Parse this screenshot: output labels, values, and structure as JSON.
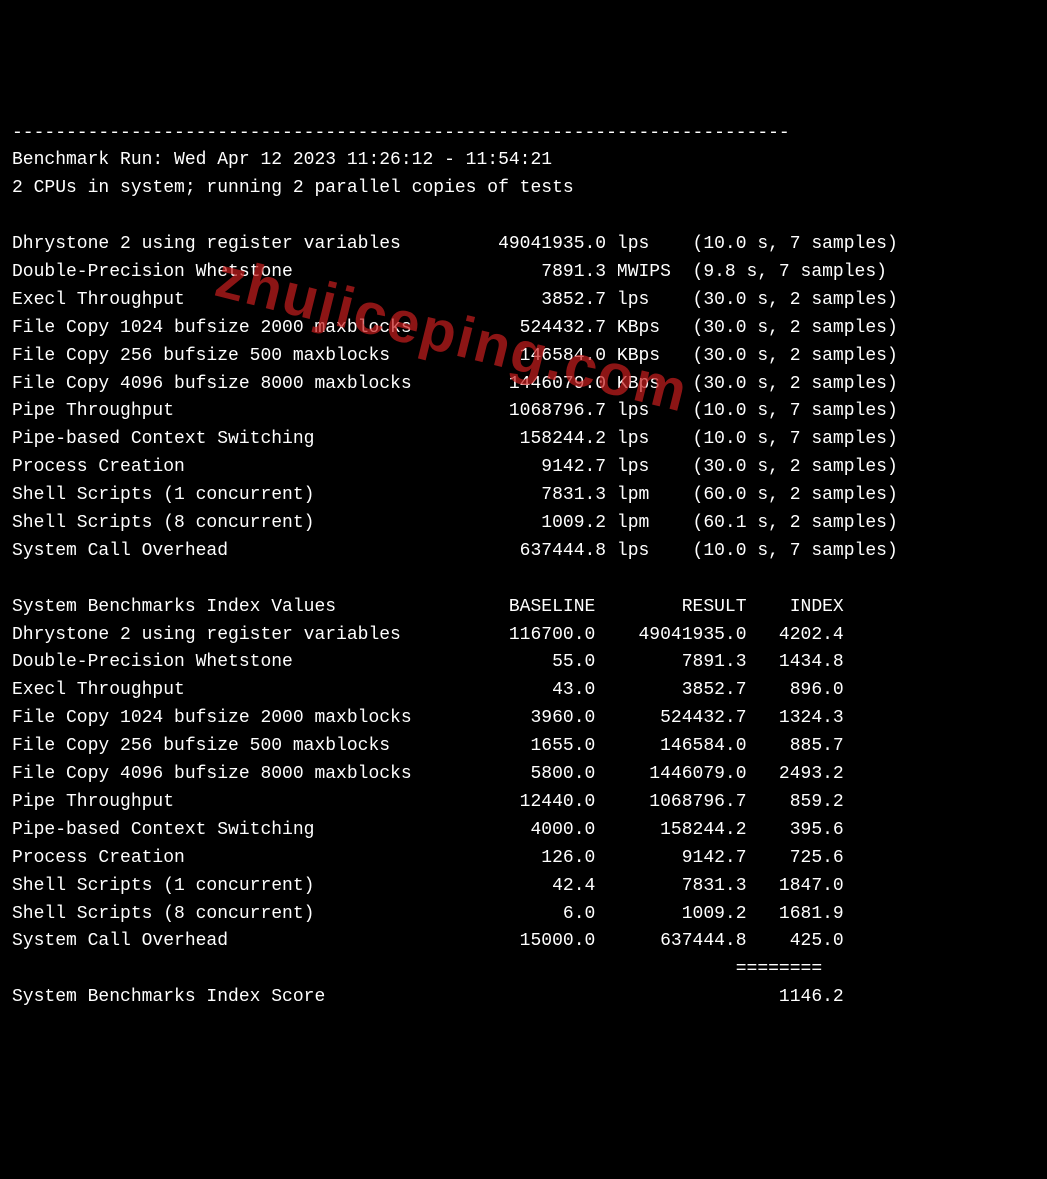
{
  "separator_top": "------------------------------------------------------------------------",
  "header": {
    "run_line": "Benchmark Run: Wed Apr 12 2023 11:26:12 - 11:54:21",
    "cpu_line": "2 CPUs in system; running 2 parallel copies of tests"
  },
  "results_section": {
    "rows": [
      {
        "name": "Dhrystone 2 using register variables",
        "value": "49041935.0",
        "unit": "lps",
        "timing": "(10.0 s, 7 samples)"
      },
      {
        "name": "Double-Precision Whetstone",
        "value": "7891.3",
        "unit": "MWIPS",
        "timing": "(9.8 s, 7 samples)"
      },
      {
        "name": "Execl Throughput",
        "value": "3852.7",
        "unit": "lps",
        "timing": "(30.0 s, 2 samples)"
      },
      {
        "name": "File Copy 1024 bufsize 2000 maxblocks",
        "value": "524432.7",
        "unit": "KBps",
        "timing": "(30.0 s, 2 samples)"
      },
      {
        "name": "File Copy 256 bufsize 500 maxblocks",
        "value": "146584.0",
        "unit": "KBps",
        "timing": "(30.0 s, 2 samples)"
      },
      {
        "name": "File Copy 4096 bufsize 8000 maxblocks",
        "value": "1446079.0",
        "unit": "KBps",
        "timing": "(30.0 s, 2 samples)"
      },
      {
        "name": "Pipe Throughput",
        "value": "1068796.7",
        "unit": "lps",
        "timing": "(10.0 s, 7 samples)"
      },
      {
        "name": "Pipe-based Context Switching",
        "value": "158244.2",
        "unit": "lps",
        "timing": "(10.0 s, 7 samples)"
      },
      {
        "name": "Process Creation",
        "value": "9142.7",
        "unit": "lps",
        "timing": "(30.0 s, 2 samples)"
      },
      {
        "name": "Shell Scripts (1 concurrent)",
        "value": "7831.3",
        "unit": "lpm",
        "timing": "(60.0 s, 2 samples)"
      },
      {
        "name": "Shell Scripts (8 concurrent)",
        "value": "1009.2",
        "unit": "lpm",
        "timing": "(60.1 s, 2 samples)"
      },
      {
        "name": "System Call Overhead",
        "value": "637444.8",
        "unit": "lps",
        "timing": "(10.0 s, 7 samples)"
      }
    ]
  },
  "index_section": {
    "header": {
      "title": "System Benchmarks Index Values",
      "col_baseline": "BASELINE",
      "col_result": "RESULT",
      "col_index": "INDEX"
    },
    "rows": [
      {
        "name": "Dhrystone 2 using register variables",
        "baseline": "116700.0",
        "result": "49041935.0",
        "index": "4202.4"
      },
      {
        "name": "Double-Precision Whetstone",
        "baseline": "55.0",
        "result": "7891.3",
        "index": "1434.8"
      },
      {
        "name": "Execl Throughput",
        "baseline": "43.0",
        "result": "3852.7",
        "index": "896.0"
      },
      {
        "name": "File Copy 1024 bufsize 2000 maxblocks",
        "baseline": "3960.0",
        "result": "524432.7",
        "index": "1324.3"
      },
      {
        "name": "File Copy 256 bufsize 500 maxblocks",
        "baseline": "1655.0",
        "result": "146584.0",
        "index": "885.7"
      },
      {
        "name": "File Copy 4096 bufsize 8000 maxblocks",
        "baseline": "5800.0",
        "result": "1446079.0",
        "index": "2493.2"
      },
      {
        "name": "Pipe Throughput",
        "baseline": "12440.0",
        "result": "1068796.7",
        "index": "859.2"
      },
      {
        "name": "Pipe-based Context Switching",
        "baseline": "4000.0",
        "result": "158244.2",
        "index": "395.6"
      },
      {
        "name": "Process Creation",
        "baseline": "126.0",
        "result": "9142.7",
        "index": "725.6"
      },
      {
        "name": "Shell Scripts (1 concurrent)",
        "baseline": "42.4",
        "result": "7831.3",
        "index": "1847.0"
      },
      {
        "name": "Shell Scripts (8 concurrent)",
        "baseline": "6.0",
        "result": "1009.2",
        "index": "1681.9"
      },
      {
        "name": "System Call Overhead",
        "baseline": "15000.0",
        "result": "637444.8",
        "index": "425.0"
      }
    ],
    "separator": "                                                                   ========",
    "score_label": "System Benchmarks Index Score",
    "score_value": "1146.2"
  },
  "watermark": "zhujiceping.com",
  "layout": {
    "name_width": 40,
    "value_width": 15,
    "unit_width": 6,
    "baseline_width": 14,
    "result_width": 14,
    "index_width": 9
  },
  "colors": {
    "background": "#000000",
    "text": "#ffffff",
    "watermark": "rgba(200,30,30,0.7)"
  }
}
